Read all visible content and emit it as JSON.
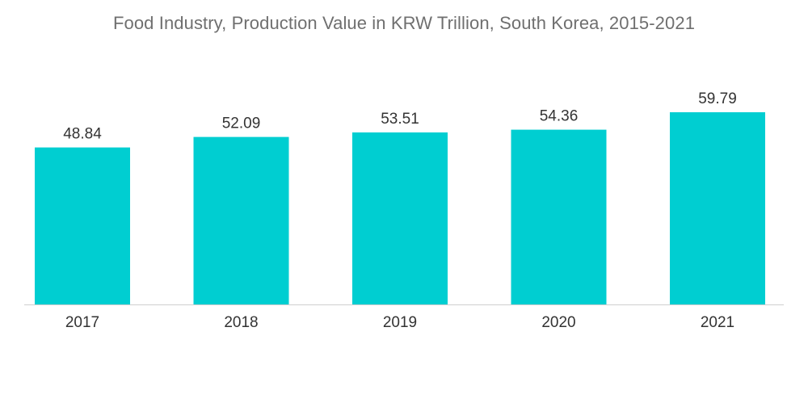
{
  "chart_data": {
    "type": "bar",
    "title": "Food Industry, Production Value in KRW Trillion, South Korea, 2015-2021",
    "categories": [
      "2017",
      "2018",
      "2019",
      "2020",
      "2021"
    ],
    "values": [
      48.84,
      52.09,
      53.51,
      54.36,
      59.79
    ],
    "value_labels": [
      "48.84",
      "52.09",
      "53.51",
      "54.36",
      "59.79"
    ],
    "xlabel": "",
    "ylabel": "",
    "ylim": [
      0,
      62.8
    ],
    "grid": false,
    "legend": "none",
    "colors": {
      "bar": "#00ced1",
      "text": "#333333",
      "title": "#6f6f6f",
      "axis": "#cfcfcf"
    }
  }
}
